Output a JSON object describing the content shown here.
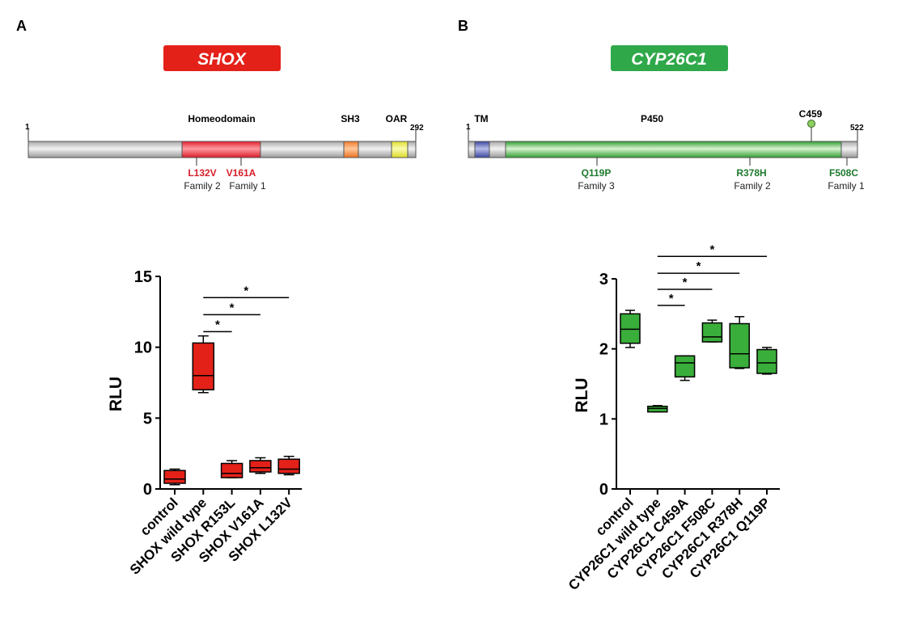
{
  "panels": {
    "a": "A",
    "b": "B"
  },
  "shox": {
    "gene": "SHOX",
    "start": "1",
    "end": "292",
    "domains": {
      "homeodomain": "Homeodomain",
      "sh3": "SH3",
      "oar": "OAR"
    },
    "mutations": [
      {
        "name": "L132V",
        "family": "Family 2"
      },
      {
        "name": "V161A",
        "family": "Family 1"
      }
    ],
    "colors": {
      "gene_box": "#e32119",
      "homeodomain": "#ec3b45",
      "sh3": "#f28a3a",
      "oar": "#ecec4a"
    }
  },
  "cyp": {
    "gene": "CYP26C1",
    "start": "1",
    "end": "522",
    "domains": {
      "tm": "TM",
      "p450": "P450"
    },
    "site": "C459",
    "mutations": [
      {
        "name": "Q119P",
        "family": "Family 3"
      },
      {
        "name": "R378H",
        "family": "Family 2"
      },
      {
        "name": "F508C",
        "family": "Family 1"
      }
    ],
    "colors": {
      "gene_box": "#2fa84a",
      "p450": "#3aae3a",
      "tm": "#4a56a8"
    }
  },
  "chart_data": [
    {
      "type": "box",
      "ylabel": "RLU",
      "ylim": [
        0,
        15
      ],
      "yticks": [
        "0",
        "5",
        "10",
        "15"
      ],
      "ytick_values": [
        0,
        5,
        10,
        15
      ],
      "color": "#e32119",
      "categories": [
        "control",
        "SHOX wild type",
        "SHOX R153L",
        "SHOX V161A",
        "SHOX L132V"
      ],
      "boxes": [
        {
          "min": 0.3,
          "q1": 0.4,
          "median": 0.7,
          "q3": 1.3,
          "max": 1.4
        },
        {
          "min": 6.8,
          "q1": 7.0,
          "median": 8.0,
          "q3": 10.3,
          "max": 10.8
        },
        {
          "min": 0.8,
          "q1": 0.8,
          "median": 1.1,
          "q3": 1.8,
          "max": 2.0
        },
        {
          "min": 1.1,
          "q1": 1.2,
          "median": 1.5,
          "q3": 2.0,
          "max": 2.2
        },
        {
          "min": 1.0,
          "q1": 1.1,
          "median": 1.4,
          "q3": 2.1,
          "max": 2.3
        }
      ],
      "significance": [
        {
          "from": 1,
          "to": 2,
          "y": 11.1,
          "label": "*"
        },
        {
          "from": 1,
          "to": 3,
          "y": 12.3,
          "label": "*"
        },
        {
          "from": 1,
          "to": 4,
          "y": 13.5,
          "label": "*"
        }
      ]
    },
    {
      "type": "box",
      "ylabel": "RLU",
      "ylim": [
        0,
        3
      ],
      "yticks": [
        "0",
        "1",
        "2",
        "3"
      ],
      "ytick_values": [
        0,
        1,
        2,
        3
      ],
      "color": "#3aae3a",
      "categories": [
        "control",
        "CYP26C1 wild type",
        "CYP26C1 C459A",
        "CYP26C1 F508C",
        "CYP26C1 R378H",
        "CYP26C1 Q119P"
      ],
      "boxes": [
        {
          "min": 2.02,
          "q1": 2.08,
          "median": 2.28,
          "q3": 2.5,
          "max": 2.55
        },
        {
          "min": 1.1,
          "q1": 1.1,
          "median": 1.15,
          "q3": 1.18,
          "max": 1.19
        },
        {
          "min": 1.55,
          "q1": 1.6,
          "median": 1.8,
          "q3": 1.9,
          "max": 1.9
        },
        {
          "min": 2.1,
          "q1": 2.1,
          "median": 2.17,
          "q3": 2.37,
          "max": 2.41
        },
        {
          "min": 1.72,
          "q1": 1.73,
          "median": 1.93,
          "q3": 2.36,
          "max": 2.46
        },
        {
          "min": 1.64,
          "q1": 1.65,
          "median": 1.8,
          "q3": 1.99,
          "max": 2.02
        }
      ],
      "significance": [
        {
          "from": 1,
          "to": 2,
          "y": 2.62,
          "label": "*"
        },
        {
          "from": 1,
          "to": 3,
          "y": 2.85,
          "label": "*"
        },
        {
          "from": 1,
          "to": 4,
          "y": 3.08,
          "label": "*"
        },
        {
          "from": 1,
          "to": 5,
          "y": 3.32,
          "label": "*"
        }
      ]
    }
  ]
}
